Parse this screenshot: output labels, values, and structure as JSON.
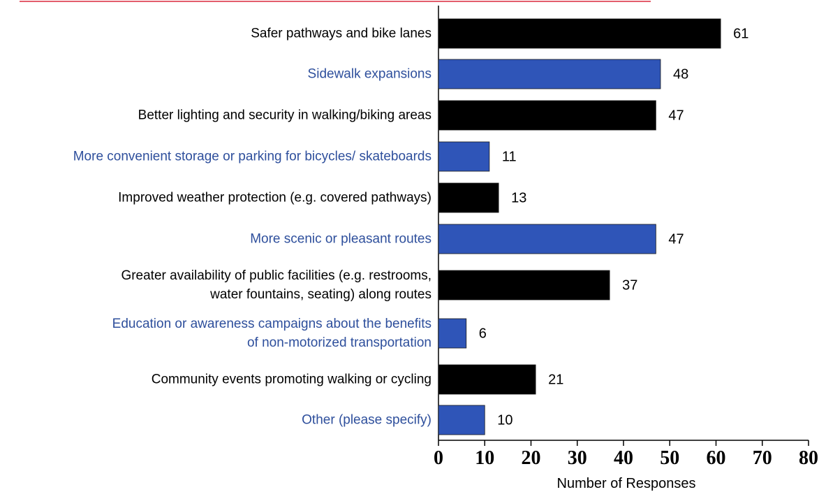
{
  "chart_data": {
    "type": "barh",
    "categories": [
      "Safer pathways and bike lanes",
      "Sidewalk expansions",
      "Better lighting and security in walking/biking areas",
      "More convenient storage or parking for bicycles/ skateboards",
      "Improved weather protection (e.g. covered pathways)",
      "More scenic or pleasant routes",
      "Greater availability of public facilities (e.g. restrooms,\nwater fountains, seating) along routes",
      "Education or awareness campaigns about the benefits\nof non-motorized transportation",
      "Community events promoting walking or cycling",
      "Other (please specify)"
    ],
    "values": [
      61,
      48,
      47,
      11,
      13,
      47,
      37,
      6,
      21,
      10
    ],
    "colors": [
      "#000000",
      "#2f55b8",
      "#000000",
      "#2f55b8",
      "#000000",
      "#2f55b8",
      "#000000",
      "#2f55b8",
      "#000000",
      "#2f55b8"
    ],
    "label_colors": [
      "#000000",
      "#2e4f9c",
      "#000000",
      "#2e4f9c",
      "#000000",
      "#2e4f9c",
      "#000000",
      "#2e4f9c",
      "#000000",
      "#2e4f9c"
    ],
    "xlabel": "Number of Responses",
    "xlim": [
      0,
      80
    ],
    "xticks": [
      0,
      10,
      20,
      30,
      40,
      50,
      60,
      70,
      80
    ]
  }
}
